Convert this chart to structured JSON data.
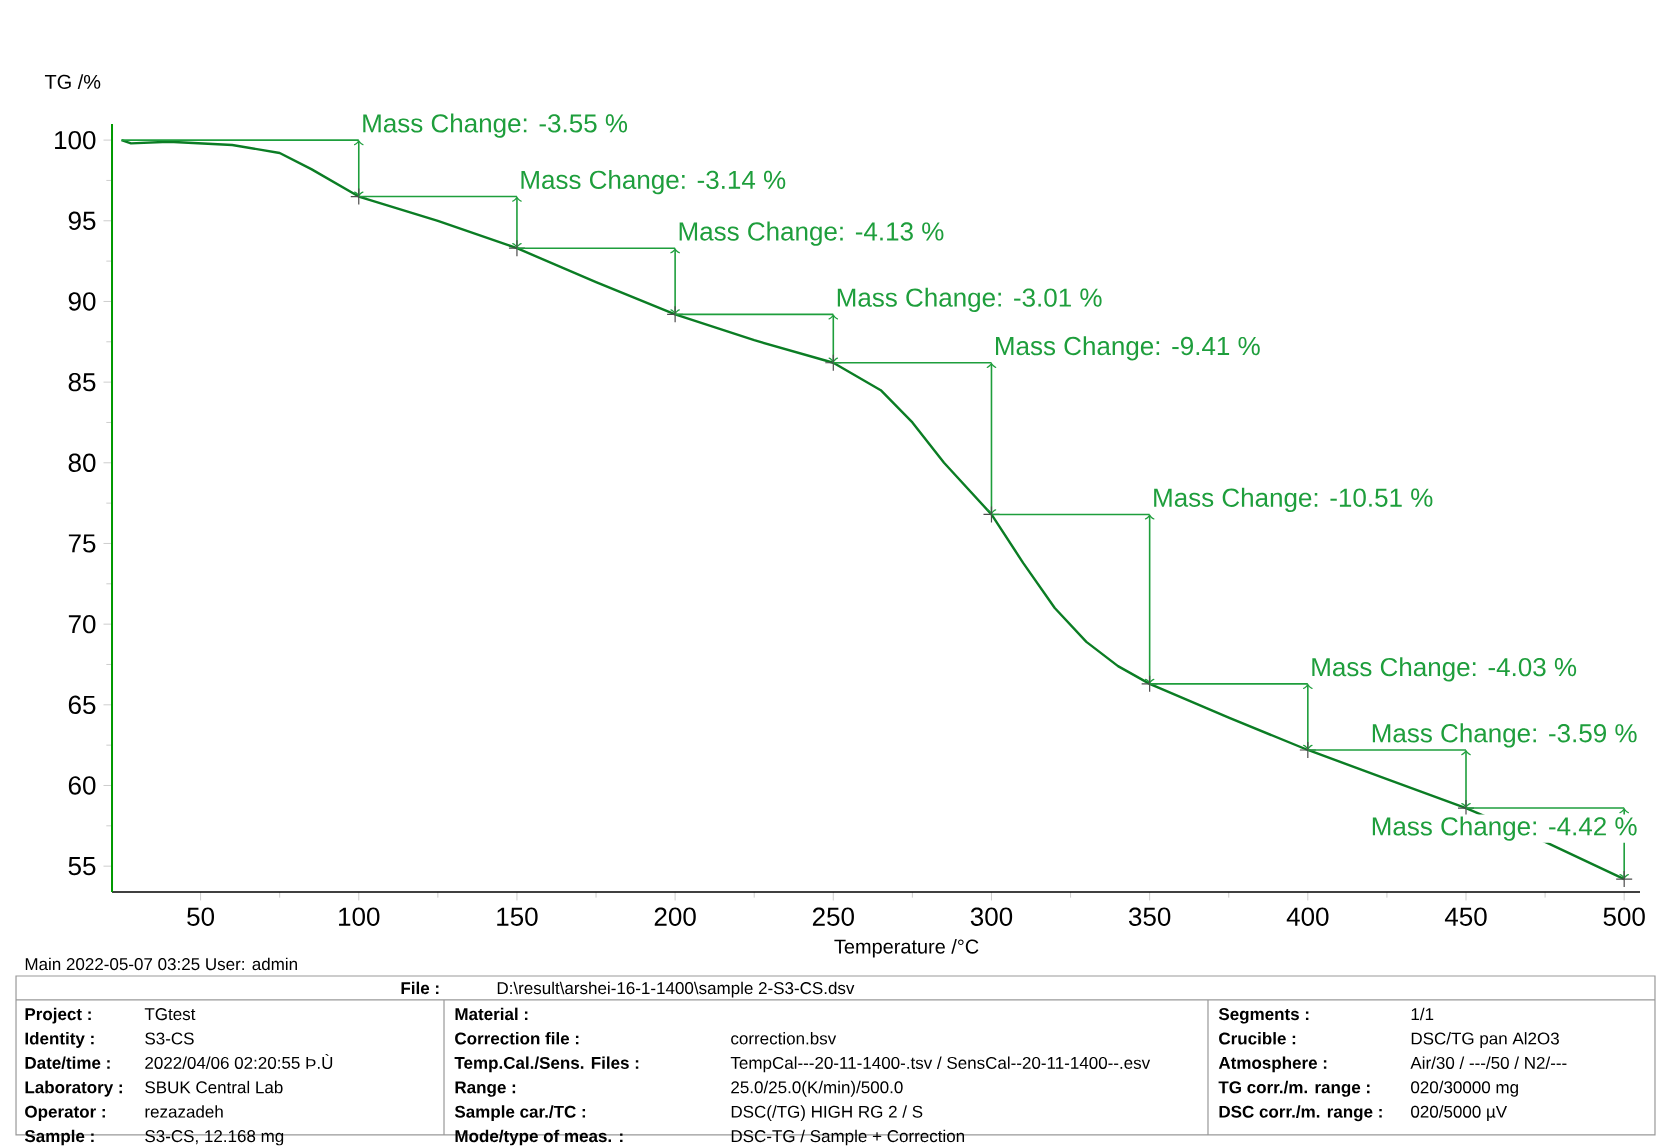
{
  "chart_data": {
    "type": "line",
    "xlabel": "Temperature /°C",
    "ylabel": "TG /%",
    "color": "#0b7d24",
    "x": [
      25,
      28,
      40,
      60,
      75,
      85,
      100,
      125,
      150,
      175,
      200,
      225,
      250,
      265,
      275,
      285,
      300,
      310,
      320,
      330,
      340,
      350,
      375,
      400,
      425,
      450,
      475,
      500
    ],
    "values": [
      100,
      99.8,
      99.9,
      99.7,
      99.2,
      98.2,
      96.5,
      95.0,
      93.3,
      91.2,
      89.2,
      87.6,
      86.2,
      84.5,
      82.5,
      80.0,
      76.8,
      73.8,
      71.0,
      68.9,
      67.4,
      66.3,
      64.2,
      62.2,
      60.4,
      58.6,
      56.5,
      54.2
    ],
    "xlim": [
      22,
      505
    ],
    "ylim": [
      53.4,
      101
    ],
    "xticks": [
      50,
      100,
      150,
      200,
      250,
      300,
      350,
      400,
      450,
      500
    ],
    "yticks": [
      55,
      60,
      65,
      70,
      75,
      80,
      85,
      90,
      95,
      100
    ],
    "annotations": [
      {
        "text": "Mass Change: -3.55 %",
        "x": 100,
        "y": 96.5
      },
      {
        "text": "Mass Change: -3.14 %",
        "x": 150,
        "y": 93.3
      },
      {
        "text": "Mass Change: -4.13 %",
        "x": 200,
        "y": 89.2
      },
      {
        "text": "Mass Change: -3.01 %",
        "x": 250,
        "y": 86.2
      },
      {
        "text": "Mass Change: -9.41 %",
        "x": 300,
        "y": 76.8
      },
      {
        "text": "Mass Change: -10.51 %",
        "x": 350,
        "y": 66.3
      },
      {
        "text": "Mass Change: -4.03 %",
        "x": 400,
        "y": 62.2
      },
      {
        "text": "Mass Change: -3.59 %",
        "x": 450,
        "y": 58.6
      },
      {
        "text": "Mass Change: -4.42 %",
        "x": 500,
        "y": 54.2
      },
      "Main   2022-05-07 03:25   User: admin",
      "File :",
      "D:\\result\\arshei-16-1-1400\\sample  2-S3-CS.dsv",
      "Project :",
      "TGtest",
      "Identity :",
      "S3-CS",
      "Date/time :",
      "2022/04/06 02:20:55 Þ.Ù",
      "Laboratory :",
      "SBUK Central Lab",
      "Operator :",
      "rezazadeh",
      "Sample :",
      "S3-CS, 12.168 mg",
      "Material :",
      "Correction file :",
      "correction.bsv",
      "Temp.Cal./Sens. Files :",
      "TempCal---20-11-1400-.tsv / SensCal--20-11-1400--.esv",
      "Range :",
      "25.0/25.0(K/min)/500.0",
      "Sample car./TC :",
      "DSC(/TG) HIGH RG 2 / S",
      "Mode/type of meas. :",
      "DSC-TG / Sample + Correction",
      "Segments :",
      "1/1",
      "Crucible :",
      "DSC/TG pan Al2O3",
      "Atmosphere :",
      "Air/30 / ---/50 / N2/---",
      "TG corr./m. range :",
      "020/30000 mg",
      "DSC corr./m. range :",
      "020/5000 µV"
    ]
  }
}
